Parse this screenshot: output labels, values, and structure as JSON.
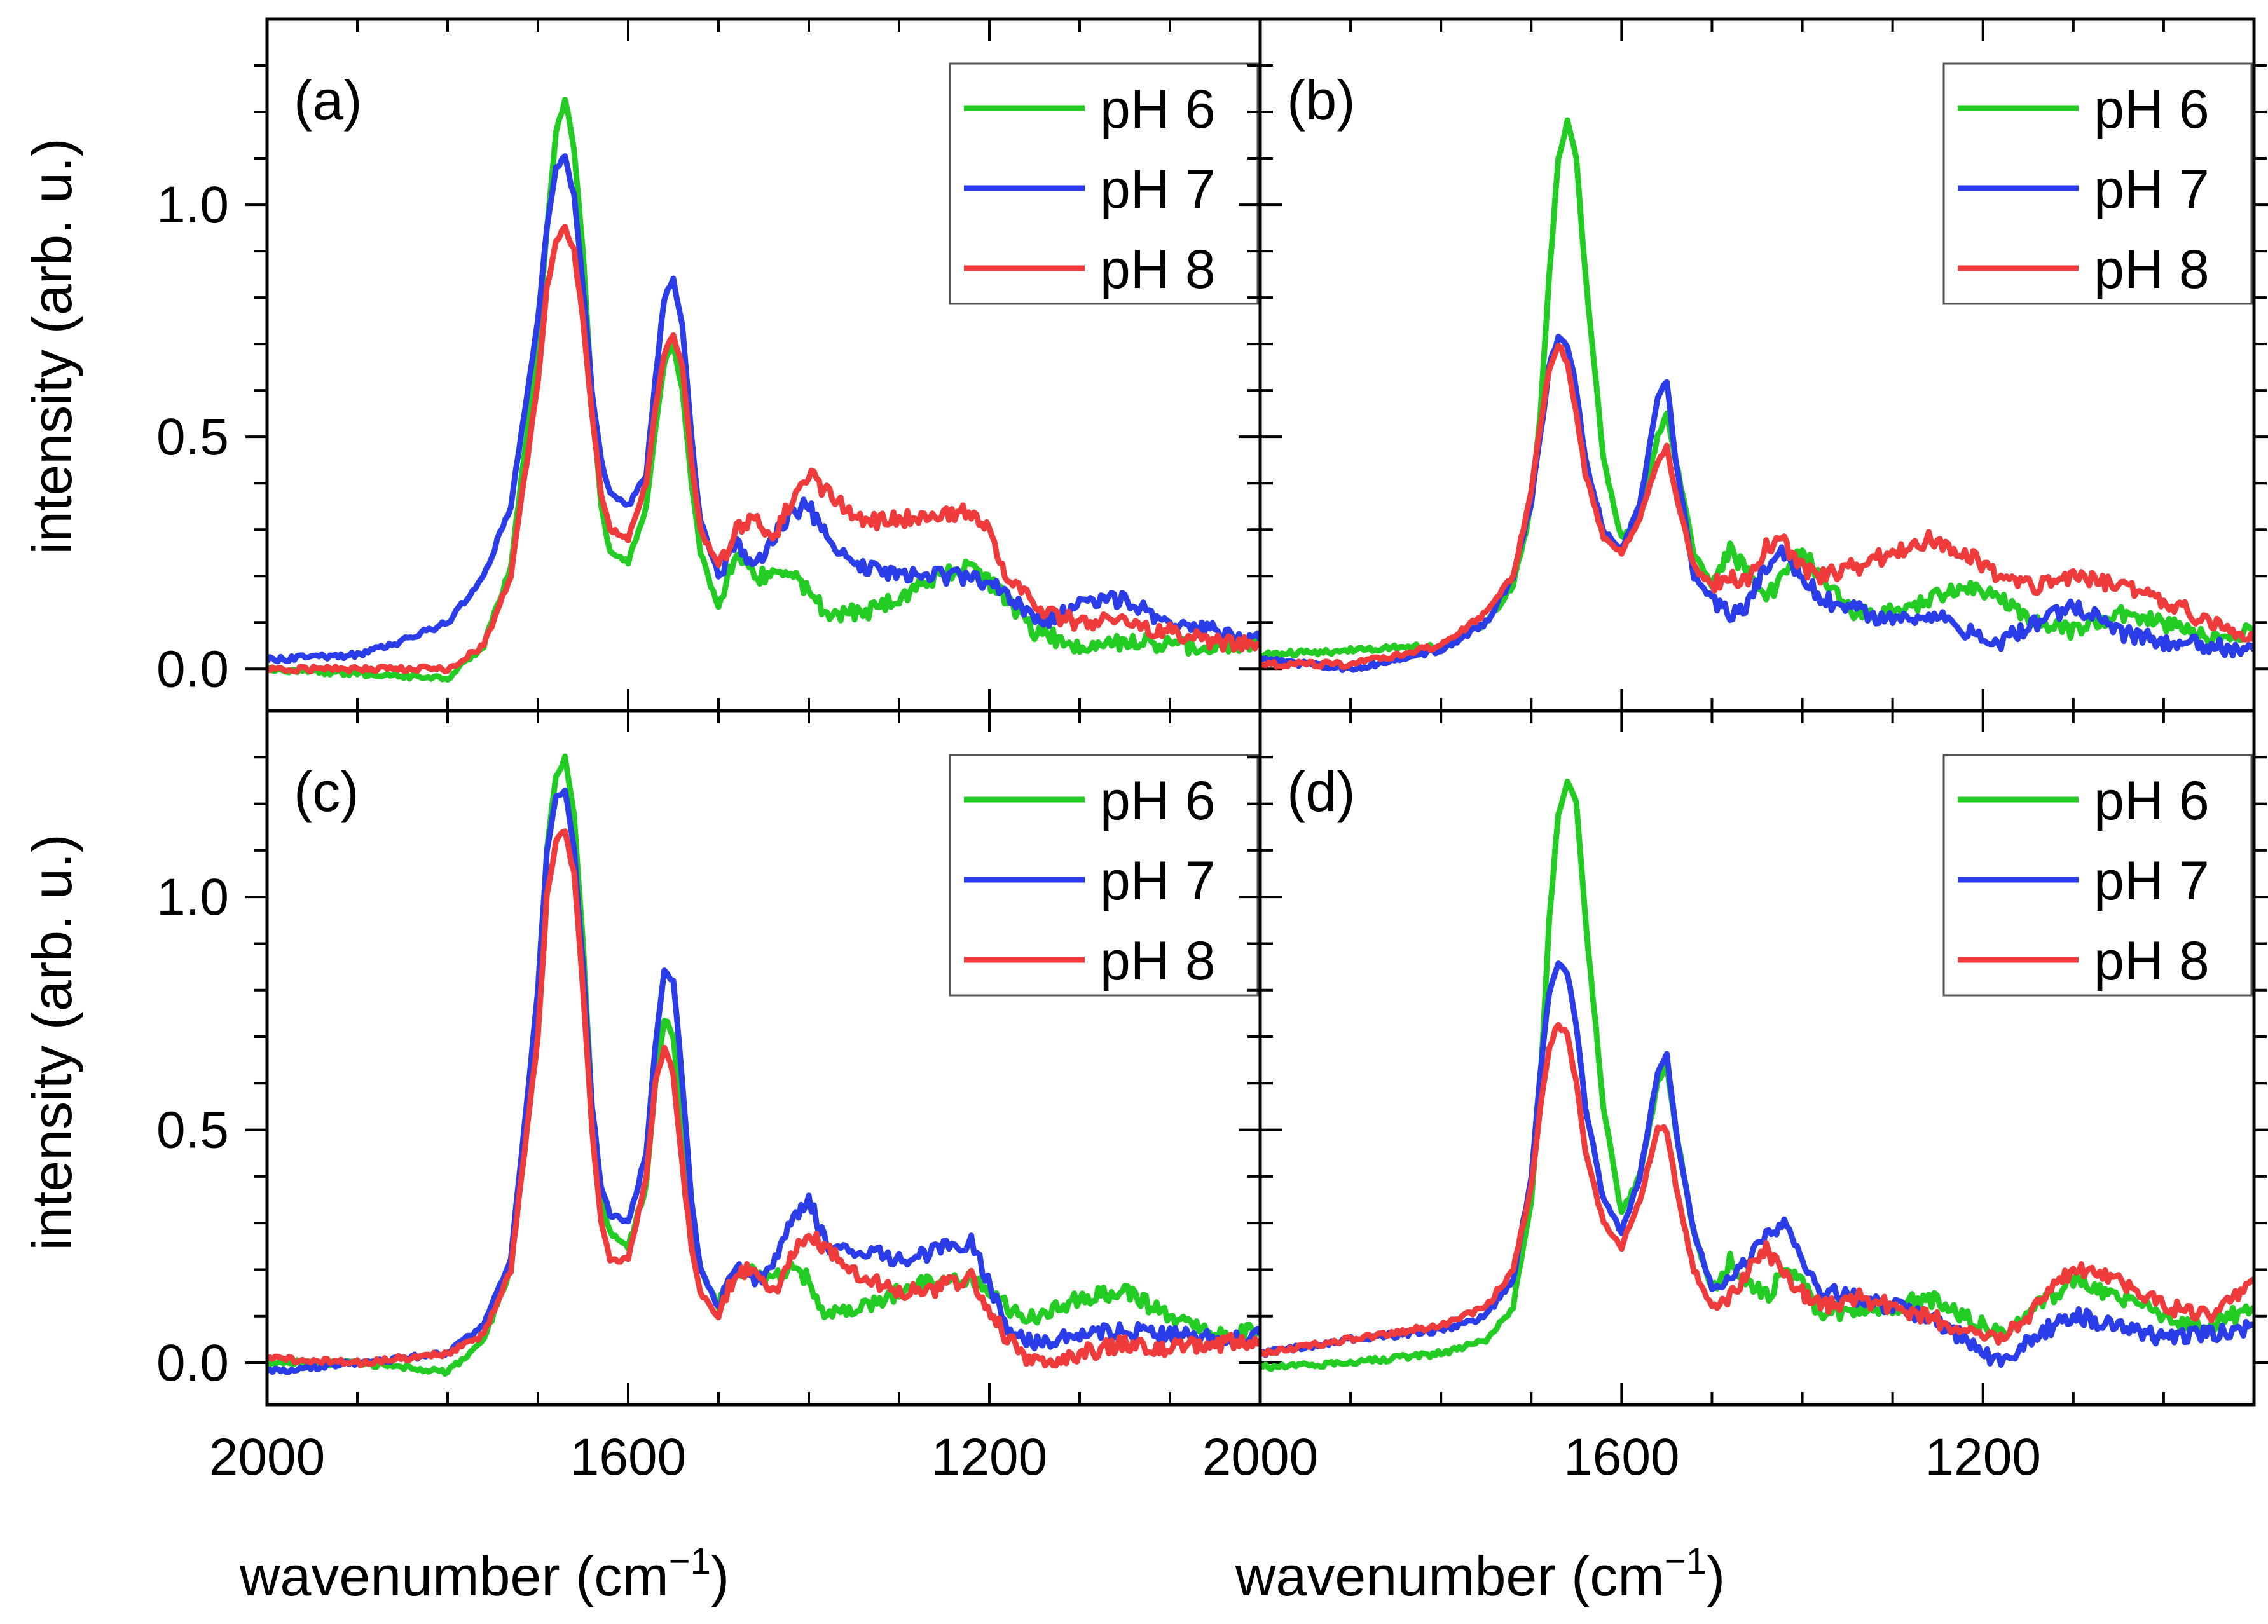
{
  "figure": {
    "ylabel": "intensity (arb. u.)",
    "xlabel_main": "wavenumber (cm",
    "xlabel_sup": "−1",
    "xlabel_close": ")",
    "series_colors": {
      "pH 6": "#22cc22",
      "pH 7": "#2a3de8",
      "pH 8": "#ef3b3b"
    }
  },
  "chart_data": [
    {
      "type": "line",
      "panel": "(a)",
      "xlabel": "",
      "ylabel": "intensity (arb. u.)",
      "xlim": [
        2000,
        900
      ],
      "ylim": [
        -0.09,
        1.4
      ],
      "x_ticks": [],
      "y_ticks": [
        "0.0",
        "0.5",
        "1.0"
      ],
      "legend": [
        "pH 6",
        "pH 7",
        "pH 8"
      ],
      "legend_position": "top-right",
      "series": [
        {
          "name": "pH 6",
          "x": [
            2000,
            1900,
            1800,
            1760,
            1730,
            1700,
            1690,
            1680,
            1670,
            1660,
            1650,
            1640,
            1630,
            1620,
            1600,
            1580,
            1570,
            1560,
            1550,
            1540,
            1530,
            1520,
            1500,
            1480,
            1460,
            1440,
            1420,
            1400,
            1380,
            1340,
            1300,
            1260,
            1220,
            1180,
            1150,
            1100,
            1050,
            1000,
            950,
            900
          ],
          "values": [
            0.0,
            -0.01,
            -0.02,
            0.05,
            0.22,
            0.7,
            0.95,
            1.15,
            1.23,
            1.12,
            0.9,
            0.58,
            0.35,
            0.25,
            0.23,
            0.35,
            0.52,
            0.66,
            0.7,
            0.6,
            0.4,
            0.25,
            0.13,
            0.26,
            0.2,
            0.2,
            0.2,
            0.17,
            0.12,
            0.12,
            0.15,
            0.2,
            0.22,
            0.15,
            0.08,
            0.05,
            0.06,
            0.05,
            0.05,
            0.06
          ]
        },
        {
          "name": "pH 7",
          "x": [
            2000,
            1900,
            1850,
            1800,
            1760,
            1730,
            1700,
            1690,
            1680,
            1670,
            1660,
            1650,
            1640,
            1630,
            1620,
            1600,
            1580,
            1570,
            1560,
            1550,
            1540,
            1530,
            1520,
            1500,
            1480,
            1460,
            1440,
            1420,
            1400,
            1380,
            1340,
            1300,
            1260,
            1220,
            1180,
            1140,
            1100,
            1050,
            1000,
            950,
            900
          ],
          "values": [
            0.02,
            0.03,
            0.06,
            0.1,
            0.2,
            0.35,
            0.75,
            0.95,
            1.08,
            1.1,
            1.02,
            0.82,
            0.6,
            0.45,
            0.38,
            0.35,
            0.42,
            0.62,
            0.8,
            0.84,
            0.74,
            0.5,
            0.32,
            0.2,
            0.28,
            0.22,
            0.28,
            0.34,
            0.35,
            0.28,
            0.22,
            0.2,
            0.2,
            0.2,
            0.16,
            0.1,
            0.14,
            0.15,
            0.1,
            0.08,
            0.06
          ]
        },
        {
          "name": "pH 8",
          "x": [
            2000,
            1900,
            1800,
            1760,
            1730,
            1700,
            1690,
            1680,
            1670,
            1660,
            1650,
            1640,
            1630,
            1620,
            1600,
            1580,
            1570,
            1560,
            1550,
            1540,
            1530,
            1520,
            1500,
            1480,
            1460,
            1440,
            1420,
            1400,
            1380,
            1340,
            1300,
            1260,
            1220,
            1200,
            1180,
            1140,
            1100,
            1050,
            1000,
            950,
            900
          ],
          "values": [
            0.0,
            0.0,
            0.0,
            0.05,
            0.2,
            0.62,
            0.82,
            0.92,
            0.95,
            0.9,
            0.75,
            0.55,
            0.38,
            0.3,
            0.28,
            0.4,
            0.56,
            0.68,
            0.72,
            0.65,
            0.45,
            0.3,
            0.22,
            0.3,
            0.32,
            0.28,
            0.36,
            0.42,
            0.38,
            0.32,
            0.32,
            0.33,
            0.34,
            0.3,
            0.2,
            0.12,
            0.1,
            0.1,
            0.08,
            0.06,
            0.05
          ]
        }
      ]
    },
    {
      "type": "line",
      "panel": "(b)",
      "xlabel": "",
      "ylabel": "",
      "xlim": [
        2000,
        900
      ],
      "ylim": [
        -0.09,
        1.4
      ],
      "x_ticks": [],
      "y_ticks": [],
      "legend": [
        "pH 6",
        "pH 7",
        "pH 8"
      ],
      "legend_position": "top-right",
      "series": [
        {
          "name": "pH 6",
          "x": [
            2000,
            1900,
            1800,
            1750,
            1720,
            1700,
            1690,
            1680,
            1670,
            1660,
            1650,
            1640,
            1620,
            1600,
            1580,
            1560,
            1550,
            1540,
            1520,
            1500,
            1480,
            1460,
            1440,
            1420,
            1400,
            1380,
            1340,
            1300,
            1260,
            1220,
            1180,
            1140,
            1100,
            1050,
            1000,
            950,
            900
          ],
          "values": [
            0.03,
            0.04,
            0.05,
            0.1,
            0.18,
            0.35,
            0.55,
            0.85,
            1.1,
            1.18,
            1.1,
            0.85,
            0.45,
            0.28,
            0.32,
            0.5,
            0.55,
            0.45,
            0.25,
            0.18,
            0.26,
            0.2,
            0.15,
            0.2,
            0.25,
            0.2,
            0.12,
            0.12,
            0.15,
            0.18,
            0.15,
            0.1,
            0.08,
            0.12,
            0.1,
            0.07,
            0.08
          ]
        },
        {
          "name": "pH 7",
          "x": [
            2000,
            1900,
            1800,
            1750,
            1720,
            1700,
            1690,
            1680,
            1670,
            1660,
            1650,
            1640,
            1620,
            1600,
            1580,
            1560,
            1550,
            1540,
            1520,
            1500,
            1480,
            1460,
            1440,
            1420,
            1400,
            1380,
            1340,
            1300,
            1260,
            1220,
            1180,
            1140,
            1100,
            1050,
            1000,
            950,
            900
          ],
          "values": [
            0.02,
            0.0,
            0.04,
            0.1,
            0.2,
            0.36,
            0.5,
            0.65,
            0.72,
            0.7,
            0.6,
            0.45,
            0.3,
            0.26,
            0.35,
            0.58,
            0.62,
            0.45,
            0.2,
            0.15,
            0.12,
            0.14,
            0.22,
            0.25,
            0.2,
            0.15,
            0.13,
            0.1,
            0.12,
            0.08,
            0.06,
            0.1,
            0.14,
            0.08,
            0.06,
            0.05,
            0.04
          ]
        },
        {
          "name": "pH 8",
          "x": [
            2000,
            1900,
            1800,
            1750,
            1720,
            1700,
            1690,
            1680,
            1670,
            1660,
            1650,
            1640,
            1620,
            1600,
            1580,
            1560,
            1550,
            1540,
            1520,
            1500,
            1480,
            1460,
            1440,
            1420,
            1400,
            1380,
            1340,
            1300,
            1260,
            1220,
            1180,
            1140,
            1100,
            1050,
            1000,
            950,
            900
          ],
          "values": [
            0.01,
            0.01,
            0.05,
            0.12,
            0.2,
            0.38,
            0.52,
            0.65,
            0.7,
            0.66,
            0.55,
            0.42,
            0.28,
            0.25,
            0.32,
            0.45,
            0.48,
            0.38,
            0.22,
            0.18,
            0.2,
            0.18,
            0.26,
            0.27,
            0.22,
            0.2,
            0.22,
            0.25,
            0.28,
            0.25,
            0.2,
            0.18,
            0.2,
            0.18,
            0.15,
            0.1,
            0.06
          ]
        }
      ]
    },
    {
      "type": "line",
      "panel": "(c)",
      "xlabel": "wavenumber (cm−1)",
      "ylabel": "intensity (arb. u.)",
      "xlim": [
        2000,
        900
      ],
      "ylim": [
        -0.09,
        1.4
      ],
      "x_ticks": [
        "2000",
        "1600",
        "1200"
      ],
      "y_ticks": [
        "0.0",
        "0.5",
        "1.0"
      ],
      "legend": [
        "pH 6",
        "pH 7",
        "pH 8"
      ],
      "legend_position": "top-right",
      "series": [
        {
          "name": "pH 6",
          "x": [
            2000,
            1900,
            1800,
            1760,
            1730,
            1700,
            1690,
            1680,
            1670,
            1660,
            1650,
            1640,
            1630,
            1620,
            1600,
            1580,
            1570,
            1560,
            1550,
            1540,
            1530,
            1520,
            1500,
            1480,
            1460,
            1440,
            1420,
            1400,
            1380,
            1340,
            1300,
            1260,
            1220,
            1180,
            1150,
            1100,
            1050,
            1000,
            950,
            900
          ],
          "values": [
            0.0,
            0.0,
            -0.02,
            0.05,
            0.2,
            0.8,
            1.1,
            1.26,
            1.3,
            1.18,
            0.9,
            0.55,
            0.35,
            0.28,
            0.25,
            0.38,
            0.6,
            0.74,
            0.7,
            0.5,
            0.3,
            0.2,
            0.12,
            0.2,
            0.2,
            0.18,
            0.2,
            0.18,
            0.1,
            0.12,
            0.15,
            0.18,
            0.18,
            0.12,
            0.1,
            0.14,
            0.15,
            0.1,
            0.06,
            0.07
          ]
        },
        {
          "name": "pH 7",
          "x": [
            2000,
            1900,
            1800,
            1760,
            1730,
            1700,
            1690,
            1680,
            1670,
            1660,
            1650,
            1640,
            1630,
            1620,
            1600,
            1580,
            1570,
            1560,
            1550,
            1540,
            1530,
            1520,
            1500,
            1480,
            1460,
            1440,
            1420,
            1400,
            1380,
            1340,
            1300,
            1260,
            1220,
            1180,
            1150,
            1100,
            1050,
            1000,
            950,
            900
          ],
          "values": [
            -0.02,
            0.0,
            0.02,
            0.08,
            0.22,
            0.8,
            1.1,
            1.22,
            1.23,
            1.1,
            0.85,
            0.55,
            0.38,
            0.32,
            0.3,
            0.45,
            0.68,
            0.84,
            0.82,
            0.6,
            0.35,
            0.2,
            0.12,
            0.2,
            0.18,
            0.2,
            0.3,
            0.35,
            0.25,
            0.24,
            0.22,
            0.24,
            0.26,
            0.08,
            0.04,
            0.06,
            0.07,
            0.06,
            0.05,
            0.06
          ]
        },
        {
          "name": "pH 8",
          "x": [
            2000,
            1900,
            1800,
            1760,
            1730,
            1700,
            1690,
            1680,
            1670,
            1660,
            1650,
            1640,
            1630,
            1620,
            1600,
            1580,
            1570,
            1560,
            1550,
            1540,
            1530,
            1520,
            1500,
            1480,
            1460,
            1440,
            1420,
            1400,
            1380,
            1340,
            1300,
            1260,
            1220,
            1180,
            1150,
            1100,
            1050,
            1000,
            950,
            900
          ],
          "values": [
            0.01,
            0.0,
            0.02,
            0.06,
            0.2,
            0.7,
            1.0,
            1.12,
            1.14,
            1.05,
            0.8,
            0.5,
            0.3,
            0.22,
            0.22,
            0.4,
            0.6,
            0.68,
            0.62,
            0.42,
            0.25,
            0.15,
            0.1,
            0.2,
            0.2,
            0.15,
            0.22,
            0.28,
            0.24,
            0.18,
            0.15,
            0.16,
            0.18,
            0.05,
            0.0,
            0.02,
            0.04,
            0.03,
            0.04,
            0.05
          ]
        }
      ]
    },
    {
      "type": "line",
      "panel": "(d)",
      "xlabel": "wavenumber (cm−1)",
      "ylabel": "",
      "xlim": [
        2000,
        900
      ],
      "ylim": [
        -0.09,
        1.4
      ],
      "x_ticks": [
        "2000",
        "1600",
        "1200"
      ],
      "y_ticks": [],
      "legend": [
        "pH 6",
        "pH 7",
        "pH 8"
      ],
      "legend_position": "top-right",
      "series": [
        {
          "name": "pH 6",
          "x": [
            2000,
            1900,
            1800,
            1750,
            1720,
            1700,
            1690,
            1680,
            1670,
            1660,
            1650,
            1640,
            1620,
            1600,
            1580,
            1560,
            1550,
            1540,
            1520,
            1500,
            1480,
            1460,
            1440,
            1420,
            1400,
            1380,
            1340,
            1300,
            1260,
            1220,
            1180,
            1140,
            1100,
            1050,
            1000,
            950,
            900
          ],
          "values": [
            -0.01,
            0.0,
            0.02,
            0.05,
            0.12,
            0.35,
            0.6,
            0.95,
            1.18,
            1.25,
            1.2,
            0.95,
            0.55,
            0.32,
            0.4,
            0.6,
            0.64,
            0.5,
            0.28,
            0.16,
            0.22,
            0.18,
            0.14,
            0.2,
            0.18,
            0.1,
            0.12,
            0.12,
            0.14,
            0.1,
            0.06,
            0.12,
            0.18,
            0.14,
            0.1,
            0.08,
            0.12
          ]
        },
        {
          "name": "pH 7",
          "x": [
            2000,
            1900,
            1800,
            1750,
            1720,
            1700,
            1690,
            1680,
            1670,
            1660,
            1650,
            1640,
            1620,
            1600,
            1580,
            1560,
            1550,
            1540,
            1520,
            1500,
            1480,
            1460,
            1440,
            1420,
            1400,
            1380,
            1340,
            1300,
            1260,
            1220,
            1180,
            1140,
            1100,
            1050,
            1000,
            950,
            900
          ],
          "values": [
            0.02,
            0.05,
            0.07,
            0.1,
            0.18,
            0.4,
            0.62,
            0.8,
            0.86,
            0.84,
            0.72,
            0.55,
            0.35,
            0.28,
            0.4,
            0.62,
            0.66,
            0.5,
            0.28,
            0.16,
            0.18,
            0.22,
            0.28,
            0.3,
            0.22,
            0.16,
            0.14,
            0.12,
            0.1,
            0.05,
            0.0,
            0.06,
            0.1,
            0.08,
            0.05,
            0.06,
            0.08
          ]
        },
        {
          "name": "pH 8",
          "x": [
            2000,
            1900,
            1800,
            1750,
            1720,
            1700,
            1690,
            1680,
            1670,
            1660,
            1650,
            1640,
            1620,
            1600,
            1580,
            1560,
            1550,
            1540,
            1520,
            1500,
            1480,
            1460,
            1440,
            1420,
            1400,
            1380,
            1340,
            1300,
            1260,
            1220,
            1180,
            1140,
            1100,
            1050,
            1000,
            950,
            900
          ],
          "values": [
            0.02,
            0.05,
            0.08,
            0.12,
            0.2,
            0.38,
            0.55,
            0.68,
            0.73,
            0.7,
            0.6,
            0.45,
            0.3,
            0.25,
            0.35,
            0.5,
            0.5,
            0.38,
            0.2,
            0.12,
            0.14,
            0.2,
            0.24,
            0.2,
            0.15,
            0.12,
            0.14,
            0.12,
            0.1,
            0.07,
            0.05,
            0.12,
            0.2,
            0.18,
            0.12,
            0.1,
            0.18
          ]
        }
      ]
    }
  ]
}
